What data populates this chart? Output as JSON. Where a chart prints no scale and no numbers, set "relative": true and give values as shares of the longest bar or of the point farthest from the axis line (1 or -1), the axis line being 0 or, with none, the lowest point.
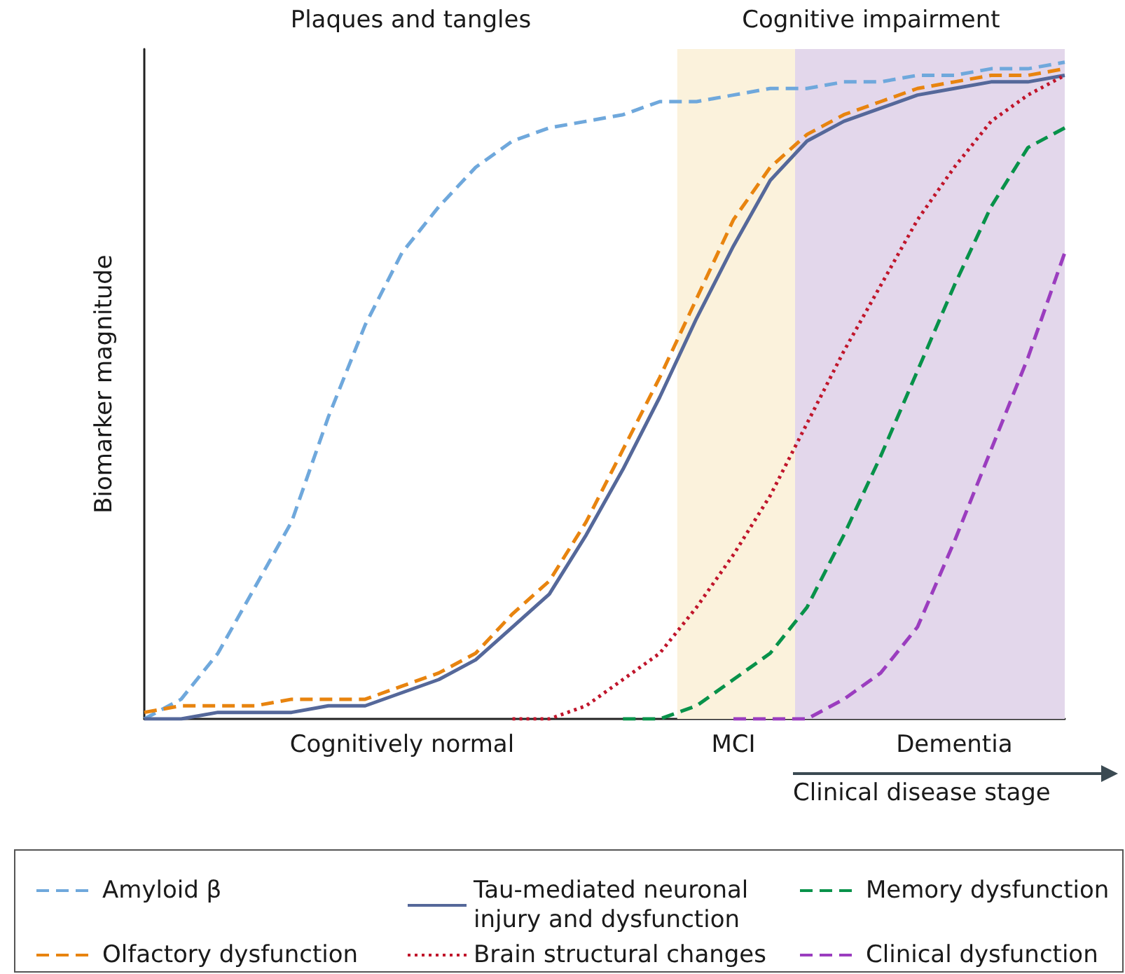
{
  "chart_data": {
    "type": "line",
    "relative": true,
    "ylabel": "Biomarker magnitude",
    "xlabel": "Clinical disease stage",
    "tick_labels": "x",
    "grid": false,
    "legend": "bottom",
    "marker": "none",
    "categories": [
      null,
      null,
      null,
      null,
      null,
      null,
      null,
      "Cognitively normal",
      null,
      null,
      null,
      null,
      null,
      null,
      null,
      null,
      "MCI",
      null,
      null,
      null,
      null,
      null,
      "Dementia",
      null,
      null,
      null
    ],
    "annotations": [
      "Plaques and tangles",
      "Cognitive impairment"
    ],
    "series": [
      {
        "name": "Amyloid β",
        "color": "#6fa8dc",
        "line_style": "dashed",
        "values": [
          0,
          0.03,
          0.1,
          0.2,
          0.3,
          0.46,
          0.6,
          0.71,
          0.78,
          0.84,
          0.88,
          0.9,
          0.91,
          0.92,
          0.94,
          0.94,
          0.95,
          0.96,
          0.96,
          0.97,
          0.97,
          0.98,
          0.98,
          0.99,
          0.99,
          1
        ]
      },
      {
        "name": "Tau-mediated neuronal injury and dysfunction",
        "color": "#55689a",
        "line_style": "solid",
        "values": [
          0,
          0,
          0.01,
          0.01,
          0.01,
          0.02,
          0.02,
          0.04,
          0.06,
          0.09,
          0.14,
          0.19,
          0.28,
          0.38,
          0.49,
          0.61,
          0.72,
          0.82,
          0.88,
          0.91,
          0.93,
          0.95,
          0.96,
          0.97,
          0.97,
          0.98
        ]
      },
      {
        "name": "Memory dysfunction",
        "color": "#08924a",
        "line_style": "dashed",
        "values": [
          null,
          null,
          null,
          null,
          null,
          null,
          null,
          null,
          null,
          null,
          null,
          null,
          null,
          0,
          0,
          0.02,
          0.06,
          0.1,
          0.17,
          0.28,
          0.4,
          0.53,
          0.66,
          0.78,
          0.87,
          0.9
        ]
      },
      {
        "name": "Olfactory dysfunction",
        "color": "#e8840f",
        "line_style": "dashed",
        "values": [
          0.01,
          0.02,
          0.02,
          0.02,
          0.03,
          0.03,
          0.03,
          0.05,
          0.07,
          0.1,
          0.16,
          0.21,
          0.3,
          0.41,
          0.52,
          0.64,
          0.76,
          0.84,
          0.89,
          0.92,
          0.94,
          0.96,
          0.97,
          0.98,
          0.98,
          0.99
        ]
      },
      {
        "name": "Brain structural changes",
        "color": "#c0152b",
        "line_style": "dotted",
        "values": [
          null,
          null,
          null,
          null,
          null,
          null,
          null,
          null,
          null,
          null,
          0,
          0,
          0.02,
          0.06,
          0.1,
          0.17,
          0.25,
          0.34,
          0.45,
          0.56,
          0.66,
          0.76,
          0.84,
          0.91,
          0.95,
          0.98
        ]
      },
      {
        "name": "Clinical dysfunction",
        "color": "#9b3dbf",
        "line_style": "dashed",
        "values": [
          null,
          null,
          null,
          null,
          null,
          null,
          null,
          null,
          null,
          null,
          null,
          null,
          null,
          null,
          null,
          null,
          0,
          0,
          0,
          0.03,
          0.07,
          0.14,
          0.27,
          0.41,
          0.55,
          0.71
        ]
      }
    ]
  }
}
